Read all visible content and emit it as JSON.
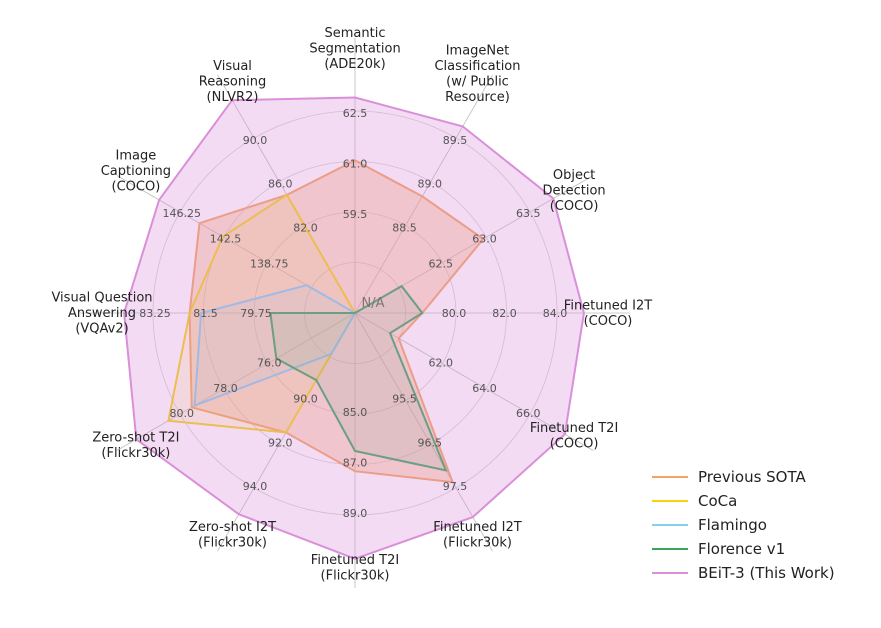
{
  "chart_data": {
    "type": "radar",
    "center_label": "N/A",
    "axes": [
      {
        "name": "Semantic Segmentation (ADE20k)",
        "lines": [
          "Semantic",
          "Segmentation",
          "(ADE20k)"
        ],
        "ticks": [
          "59.5",
          "61.0",
          "62.5"
        ],
        "min": 58.0,
        "max": 62.5
      },
      {
        "name": "ImageNet Classification (w/ Public Resource)",
        "lines": [
          "ImageNet",
          "Classification",
          "(w/ Public",
          "Resource)"
        ],
        "ticks": [
          "88.5",
          "89.0",
          "89.5"
        ],
        "min": 88.0,
        "max": 89.5
      },
      {
        "name": "Object Detection (COCO)",
        "lines": [
          "Object",
          "Detection",
          "(COCO)"
        ],
        "ticks": [
          "62.5",
          "63.0",
          "63.5"
        ],
        "min": 62.0,
        "max": 63.5
      },
      {
        "name": "Finetuned I2T (COCO)",
        "lines": [
          "Finetuned I2T",
          "(COCO)"
        ],
        "ticks": [
          "80.0",
          "82.0",
          "84.0"
        ],
        "min": 78.0,
        "max": 84.0
      },
      {
        "name": "Finetuned T2I (COCO)",
        "lines": [
          "Finetuned T2I",
          "(COCO)"
        ],
        "ticks": [
          "62.0",
          "64.0",
          "66.0"
        ],
        "min": 60.0,
        "max": 66.0
      },
      {
        "name": "Finetuned I2T (Flickr30k)",
        "lines": [
          "Finetuned I2T",
          "(Flickr30k)"
        ],
        "ticks": [
          "95.5",
          "96.5",
          "97.5"
        ],
        "min": 94.5,
        "max": 97.5
      },
      {
        "name": "Finetuned T2I (Flickr30k)",
        "lines": [
          "Finetuned T2I",
          "(Flickr30k)"
        ],
        "ticks": [
          "85.0",
          "87.0",
          "89.0"
        ],
        "min": 83.0,
        "max": 89.0
      },
      {
        "name": "Zero-shot I2T (Flickr30k)",
        "lines": [
          "Zero-shot I2T",
          "(Flickr30k)"
        ],
        "ticks": [
          "90.0",
          "92.0",
          "94.0"
        ],
        "min": 88.0,
        "max": 94.0
      },
      {
        "name": "Zero-shot T2I (Flickr30k)",
        "lines": [
          "Zero-shot T2I",
          "(Flickr30k)"
        ],
        "ticks": [
          "76.0",
          "78.0",
          "80.0"
        ],
        "min": 74.0,
        "max": 80.0
      },
      {
        "name": "Visual Question Answering (VQAv2)",
        "lines": [
          "Visual Question",
          "Answering",
          "(VQAv2)"
        ],
        "ticks": [
          "79.75",
          "81.5",
          "83.25"
        ],
        "min": 78.0,
        "max": 83.25
      },
      {
        "name": "Image Captioning (COCO)",
        "lines": [
          "Image",
          "Captioning",
          "(COCO)"
        ],
        "ticks": [
          "138.75",
          "142.5",
          "146.25"
        ],
        "min": 135.0,
        "max": 146.25
      },
      {
        "name": "Visual Reasoning (NLVR2)",
        "lines": [
          "Visual",
          "Reasoning",
          "(NLVR2)"
        ],
        "ticks": [
          "82.0",
          "86.0",
          "90.0"
        ],
        "min": 78.0,
        "max": 90.0
      }
    ],
    "series": [
      {
        "name": "Previous SOTA",
        "color": "#f4a460",
        "fill_opacity": 0.35,
        "values": [
          61.4,
          89.0,
          63.1,
          80.0,
          61.5,
          97.4,
          87.7,
          92.1,
          79.6,
          82.3,
          145.0,
          86.1
        ]
      },
      {
        "name": "CoCa",
        "color": "#f5d312",
        "fill_opacity": 0.12,
        "values": [
          null,
          null,
          null,
          null,
          null,
          null,
          null,
          92.1,
          80.4,
          82.3,
          143.5,
          86.1
        ]
      },
      {
        "name": "Flamingo",
        "color": "#87ceeb",
        "fill_opacity": 0.12,
        "values": [
          null,
          null,
          null,
          null,
          null,
          null,
          null,
          89.4,
          79.5,
          82.0,
          138.1,
          null
        ]
      },
      {
        "name": "Florence v1",
        "color": "#3aa55a",
        "fill_opacity": 0.12,
        "values": [
          null,
          null,
          62.4,
          80.0,
          61.2,
          97.2,
          87.1,
          90.3,
          76.7,
          80.2,
          null,
          null
        ]
      },
      {
        "name": "BEiT-3 (This Work)",
        "color": "#da8fd9",
        "fill_opacity": 0.32,
        "values": [
          62.8,
          89.6,
          63.7,
          84.8,
          67.2,
          98.0,
          90.3,
          94.9,
          81.5,
          84.0,
          147.6,
          92.6
        ]
      }
    ],
    "legend_position": "bottom-right"
  }
}
